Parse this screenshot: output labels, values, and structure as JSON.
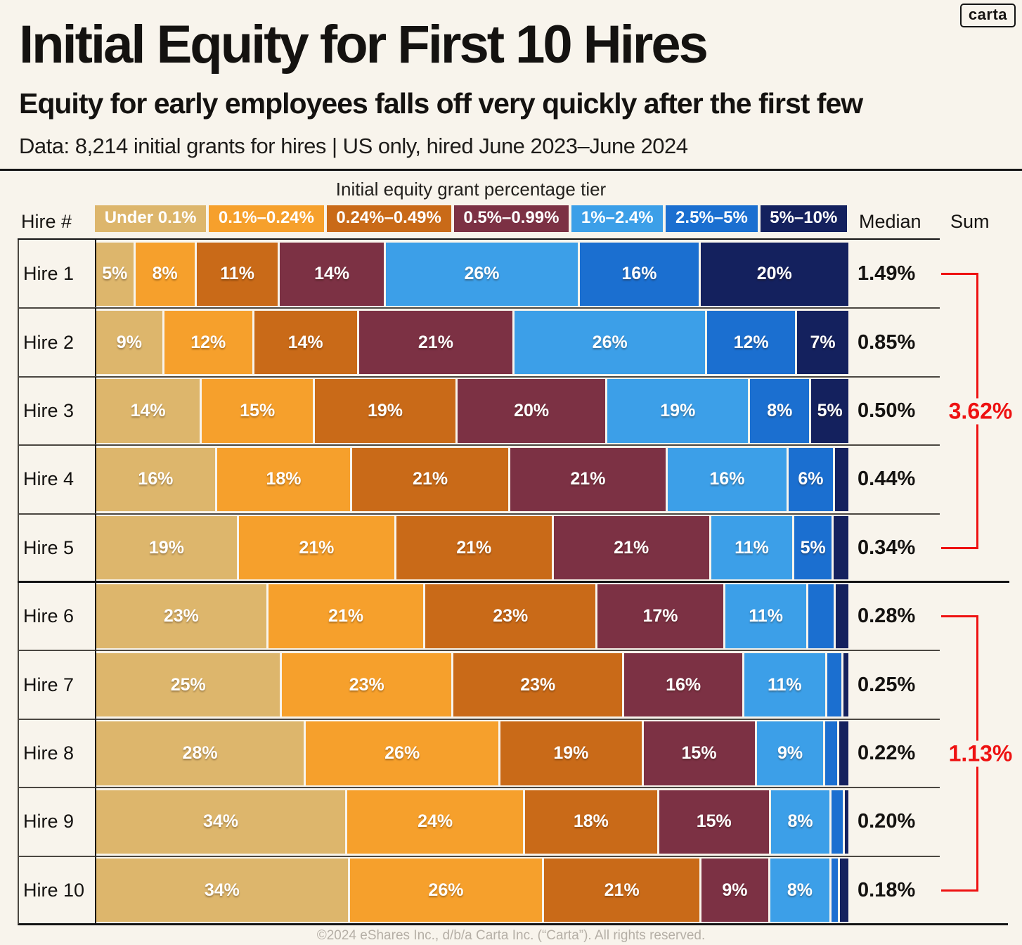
{
  "logo": {
    "text": "carta"
  },
  "header": {
    "title": "Initial Equity for First 10 Hires",
    "subtitle": "Equity for early employees falls off very quickly after the first few",
    "data_note": "Data: 8,214 initial grants for hires | US only, hired June 2023–June 2024"
  },
  "legend": {
    "title": "Initial equity grant percentage tier",
    "hire_col_label": "Hire #",
    "median_col_label": "Median",
    "sum_col_label": "Sum",
    "tiers": [
      {
        "label": "Under 0.1%",
        "color": "#DDB66C"
      },
      {
        "label": "0.1%–0.24%",
        "color": "#F6A02C"
      },
      {
        "label": "0.24%–0.49%",
        "color": "#C96A18"
      },
      {
        "label": "0.5%–0.99%",
        "color": "#7C3144"
      },
      {
        "label": "1%–2.4%",
        "color": "#3C9FE8"
      },
      {
        "label": "2.5%–5%",
        "color": "#1B6FD0"
      },
      {
        "label": "5%–10%",
        "color": "#14215E"
      }
    ]
  },
  "chart_data": {
    "type": "bar",
    "stacked": true,
    "orientation": "horizontal",
    "title": "Initial Equity for First 10 Hires",
    "value_unit": "percent of initial grants in each equity tier",
    "categories": [
      "Hire 1",
      "Hire 2",
      "Hire 3",
      "Hire 4",
      "Hire 5",
      "Hire 6",
      "Hire 7",
      "Hire 8",
      "Hire 9",
      "Hire 10"
    ],
    "tier_names": [
      "Under 0.1%",
      "0.1%–0.24%",
      "0.24%–0.49%",
      "0.5%–0.99%",
      "1%–2.4%",
      "2.5%–5%",
      "5%–10%"
    ],
    "rows": [
      {
        "hire": "Hire 1",
        "median": "1.49%",
        "segments": [
          {
            "value": 5,
            "label": "5%"
          },
          {
            "value": 8,
            "label": "8%"
          },
          {
            "value": 11,
            "label": "11%"
          },
          {
            "value": 14,
            "label": "14%"
          },
          {
            "value": 26,
            "label": "26%"
          },
          {
            "value": 16,
            "label": "16%"
          },
          {
            "value": 20,
            "label": "20%"
          }
        ]
      },
      {
        "hire": "Hire 2",
        "median": "0.85%",
        "segments": [
          {
            "value": 9,
            "label": "9%"
          },
          {
            "value": 12,
            "label": "12%"
          },
          {
            "value": 14,
            "label": "14%"
          },
          {
            "value": 21,
            "label": "21%"
          },
          {
            "value": 26,
            "label": "26%"
          },
          {
            "value": 12,
            "label": "12%"
          },
          {
            "value": 7,
            "label": "7%"
          }
        ]
      },
      {
        "hire": "Hire 3",
        "median": "0.50%",
        "segments": [
          {
            "value": 14,
            "label": "14%"
          },
          {
            "value": 15,
            "label": "15%"
          },
          {
            "value": 19,
            "label": "19%"
          },
          {
            "value": 20,
            "label": "20%"
          },
          {
            "value": 19,
            "label": "19%"
          },
          {
            "value": 8,
            "label": "8%"
          },
          {
            "value": 5,
            "label": "5%"
          }
        ]
      },
      {
        "hire": "Hire 4",
        "median": "0.44%",
        "segments": [
          {
            "value": 16,
            "label": "16%"
          },
          {
            "value": 18,
            "label": "18%"
          },
          {
            "value": 21,
            "label": "21%"
          },
          {
            "value": 21,
            "label": "21%"
          },
          {
            "value": 16,
            "label": "16%"
          },
          {
            "value": 6,
            "label": "6%"
          },
          {
            "value": 1.8,
            "label": ""
          }
        ]
      },
      {
        "hire": "Hire 5",
        "median": "0.34%",
        "segments": [
          {
            "value": 19,
            "label": "19%"
          },
          {
            "value": 21,
            "label": "21%"
          },
          {
            "value": 21,
            "label": "21%"
          },
          {
            "value": 21,
            "label": "21%"
          },
          {
            "value": 11,
            "label": "11%"
          },
          {
            "value": 5,
            "label": "5%"
          },
          {
            "value": 2,
            "label": ""
          }
        ]
      },
      {
        "hire": "Hire 6",
        "median": "0.28%",
        "segments": [
          {
            "value": 23,
            "label": "23%"
          },
          {
            "value": 21,
            "label": "21%"
          },
          {
            "value": 23,
            "label": "23%"
          },
          {
            "value": 17,
            "label": "17%"
          },
          {
            "value": 11,
            "label": "11%"
          },
          {
            "value": 3.4,
            "label": ""
          },
          {
            "value": 1.7,
            "label": ""
          }
        ]
      },
      {
        "hire": "Hire 7",
        "median": "0.25%",
        "segments": [
          {
            "value": 25,
            "label": "25%"
          },
          {
            "value": 23,
            "label": "23%"
          },
          {
            "value": 23,
            "label": "23%"
          },
          {
            "value": 16,
            "label": "16%"
          },
          {
            "value": 11,
            "label": "11%"
          },
          {
            "value": 1.9,
            "label": ""
          },
          {
            "value": 0.7,
            "label": ""
          }
        ]
      },
      {
        "hire": "Hire 8",
        "median": "0.22%",
        "segments": [
          {
            "value": 28,
            "label": "28%"
          },
          {
            "value": 26,
            "label": "26%"
          },
          {
            "value": 19,
            "label": "19%"
          },
          {
            "value": 15,
            "label": "15%"
          },
          {
            "value": 9,
            "label": "9%"
          },
          {
            "value": 1.6,
            "label": ""
          },
          {
            "value": 1.2,
            "label": ""
          }
        ]
      },
      {
        "hire": "Hire 9",
        "median": "0.20%",
        "segments": [
          {
            "value": 34,
            "label": "34%"
          },
          {
            "value": 24,
            "label": "24%"
          },
          {
            "value": 18,
            "label": "18%"
          },
          {
            "value": 15,
            "label": "15%"
          },
          {
            "value": 8,
            "label": "8%"
          },
          {
            "value": 1.5,
            "label": ""
          },
          {
            "value": 0.5,
            "label": ""
          }
        ]
      },
      {
        "hire": "Hire 10",
        "median": "0.18%",
        "segments": [
          {
            "value": 34,
            "label": "34%"
          },
          {
            "value": 26,
            "label": "26%"
          },
          {
            "value": 21,
            "label": "21%"
          },
          {
            "value": 9,
            "label": "9%"
          },
          {
            "value": 8,
            "label": "8%"
          },
          {
            "value": 0.9,
            "label": ""
          },
          {
            "value": 1.1,
            "label": ""
          }
        ]
      }
    ],
    "sum_groups": [
      {
        "label": "3.62%",
        "from_row": 0,
        "to_row": 4
      },
      {
        "label": "1.13%",
        "from_row": 5,
        "to_row": 9
      }
    ],
    "legend_position": "top",
    "grid": false
  },
  "colors": {
    "background": "#F8F4EC",
    "accent_red": "#EE1111",
    "rule_dark": "#141414",
    "rule_gray": "#4b4741"
  },
  "footer": {
    "copyright": "©2024 eShares Inc., d/b/a Carta Inc. (“Carta”). All rights reserved."
  }
}
